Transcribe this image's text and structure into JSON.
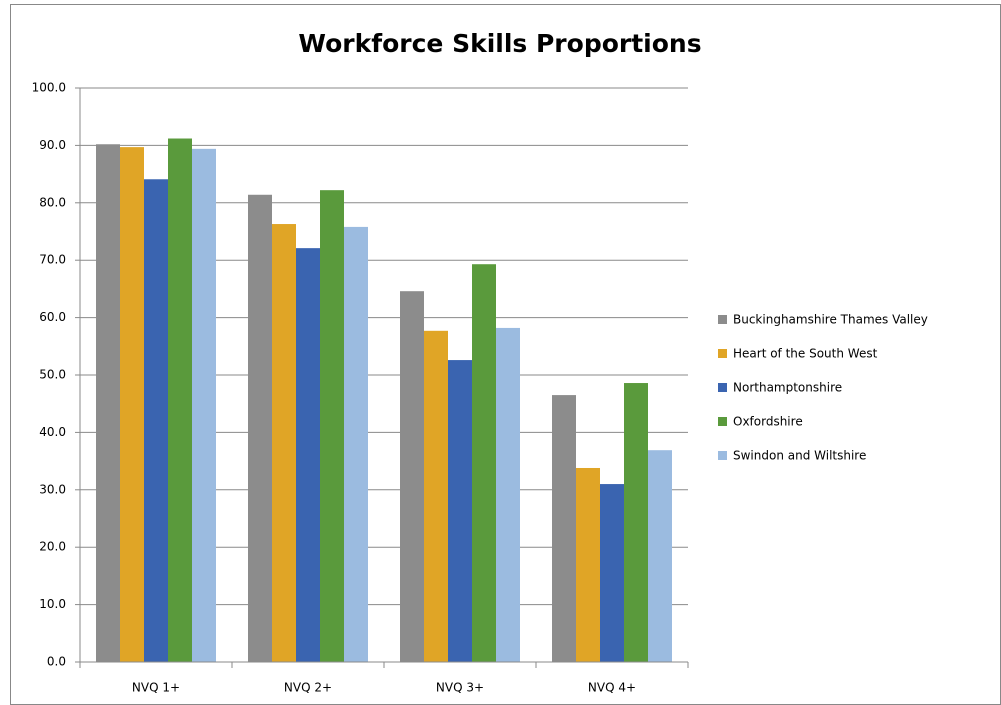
{
  "chart_data": {
    "type": "bar",
    "title": "Workforce Skills Proportions",
    "categories": [
      "NVQ 1+",
      "NVQ 2+",
      "NVQ 3+",
      "NVQ 4+"
    ],
    "series": [
      {
        "name": "Buckinghamshire Thames Valley",
        "color": "#8c8c8c",
        "values": [
          90.2,
          81.4,
          64.6,
          46.5
        ]
      },
      {
        "name": "Heart of the South West",
        "color": "#e0a526",
        "values": [
          89.7,
          76.3,
          57.7,
          33.8
        ]
      },
      {
        "name": "Northamptonshire",
        "color": "#3a64b0",
        "values": [
          84.1,
          72.1,
          52.6,
          31.0
        ]
      },
      {
        "name": "Oxfordshire",
        "color": "#5a9a3c",
        "values": [
          91.2,
          82.2,
          69.3,
          48.6
        ]
      },
      {
        "name": "Swindon and Wiltshire",
        "color": "#9bbbe0",
        "values": [
          89.4,
          75.8,
          58.2,
          36.9
        ]
      }
    ],
    "ylim": [
      0,
      100
    ],
    "yticks": [
      {
        "value": 0,
        "label": "0.0"
      },
      {
        "value": 10,
        "label": "10.0"
      },
      {
        "value": 20,
        "label": "20.0"
      },
      {
        "value": 30,
        "label": "30.0"
      },
      {
        "value": 40,
        "label": "40.0"
      },
      {
        "value": 50,
        "label": "50.0"
      },
      {
        "value": 60,
        "label": "60.0"
      },
      {
        "value": 70,
        "label": "70.0"
      },
      {
        "value": 80,
        "label": "80.0"
      },
      {
        "value": 90,
        "label": "90.0"
      },
      {
        "value": 100,
        "label": "100.0"
      }
    ],
    "grid": true,
    "legend": "right"
  }
}
